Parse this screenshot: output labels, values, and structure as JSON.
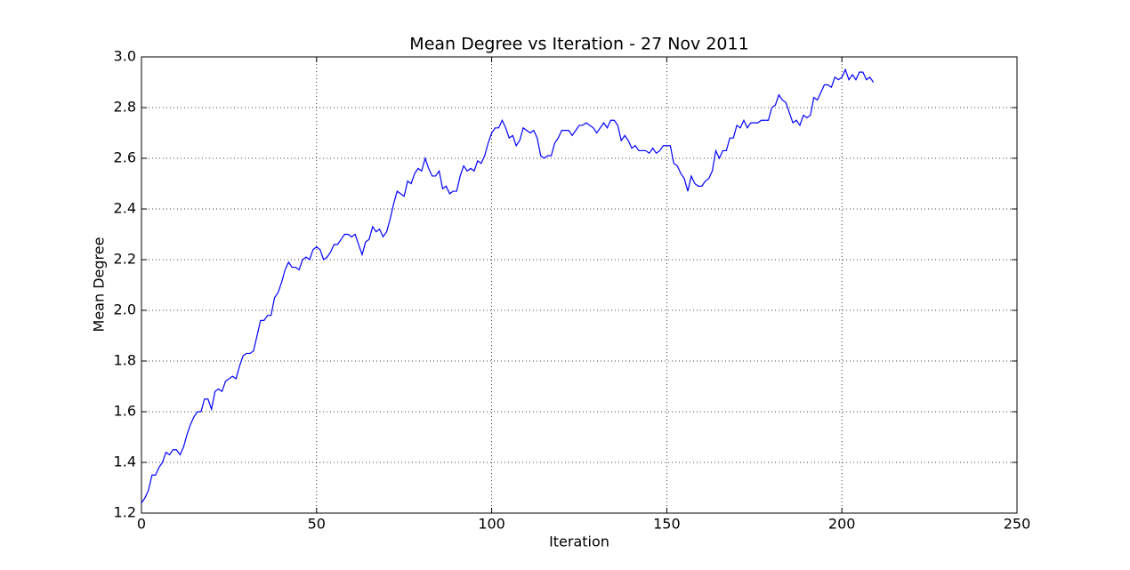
{
  "chart_data": {
    "type": "line",
    "title": "Mean Degree vs Iteration - 27 Nov 2011",
    "x_label": "Iteration",
    "y_label": "Mean Degree",
    "x": [
      0,
      1,
      2,
      3,
      4,
      5,
      6,
      7,
      8,
      9,
      10,
      11,
      12,
      13,
      14,
      15,
      16,
      17,
      18,
      19,
      20,
      21,
      22,
      23,
      24,
      25,
      26,
      27,
      28,
      29,
      30,
      31,
      32,
      33,
      34,
      35,
      36,
      37,
      38,
      39,
      40,
      41,
      42,
      43,
      44,
      45,
      46,
      47,
      48,
      49,
      50,
      51,
      52,
      53,
      54,
      55,
      56,
      57,
      58,
      59,
      60,
      61,
      62,
      63,
      64,
      65,
      66,
      67,
      68,
      69,
      70,
      71,
      72,
      73,
      74,
      75,
      76,
      77,
      78,
      79,
      80,
      81,
      82,
      83,
      84,
      85,
      86,
      87,
      88,
      89,
      90,
      91,
      92,
      93,
      94,
      95,
      96,
      97,
      98,
      99,
      100,
      101,
      102,
      103,
      104,
      105,
      106,
      107,
      108,
      109,
      110,
      111,
      112,
      113,
      114,
      115,
      116,
      117,
      118,
      119,
      120,
      121,
      122,
      123,
      124,
      125,
      126,
      127,
      128,
      129,
      130,
      131,
      132,
      133,
      134,
      135,
      136,
      137,
      138,
      139,
      140,
      141,
      142,
      143,
      144,
      145,
      146,
      147,
      148,
      149,
      150,
      151,
      152,
      153,
      154,
      155,
      156,
      157,
      158,
      159,
      160,
      161,
      162,
      163,
      164,
      165,
      166,
      167,
      168,
      169,
      170,
      171,
      172,
      173,
      174,
      175,
      176,
      177,
      178,
      179,
      180,
      181,
      182,
      183,
      184,
      185,
      186,
      187,
      188,
      189,
      190,
      191,
      192,
      193,
      194,
      195,
      196,
      197,
      198,
      199,
      200,
      201,
      202,
      203,
      204,
      205,
      206,
      207,
      208,
      209
    ],
    "series": [
      {
        "name": "Mean Degree",
        "color": "#0000ff",
        "values": [
          1.24,
          1.26,
          1.29,
          1.35,
          1.35,
          1.38,
          1.4,
          1.44,
          1.43,
          1.45,
          1.45,
          1.43,
          1.46,
          1.51,
          1.55,
          1.58,
          1.6,
          1.6,
          1.65,
          1.65,
          1.61,
          1.68,
          1.69,
          1.68,
          1.72,
          1.73,
          1.74,
          1.73,
          1.78,
          1.82,
          1.83,
          1.83,
          1.84,
          1.9,
          1.96,
          1.96,
          1.98,
          1.98,
          2.05,
          2.07,
          2.11,
          2.16,
          2.19,
          2.17,
          2.17,
          2.16,
          2.2,
          2.21,
          2.2,
          2.24,
          2.25,
          2.24,
          2.2,
          2.21,
          2.23,
          2.26,
          2.26,
          2.28,
          2.3,
          2.3,
          2.29,
          2.3,
          2.26,
          2.22,
          2.27,
          2.28,
          2.33,
          2.31,
          2.32,
          2.29,
          2.31,
          2.36,
          2.42,
          2.47,
          2.46,
          2.45,
          2.51,
          2.5,
          2.54,
          2.56,
          2.55,
          2.6,
          2.56,
          2.53,
          2.53,
          2.55,
          2.48,
          2.49,
          2.46,
          2.47,
          2.47,
          2.53,
          2.57,
          2.55,
          2.56,
          2.55,
          2.59,
          2.58,
          2.61,
          2.66,
          2.7,
          2.72,
          2.72,
          2.75,
          2.72,
          2.68,
          2.69,
          2.65,
          2.67,
          2.72,
          2.71,
          2.7,
          2.71,
          2.68,
          2.61,
          2.6,
          2.61,
          2.61,
          2.66,
          2.68,
          2.71,
          2.71,
          2.71,
          2.69,
          2.71,
          2.73,
          2.73,
          2.74,
          2.73,
          2.72,
          2.7,
          2.72,
          2.74,
          2.72,
          2.75,
          2.75,
          2.73,
          2.67,
          2.69,
          2.67,
          2.64,
          2.65,
          2.63,
          2.63,
          2.63,
          2.62,
          2.64,
          2.62,
          2.63,
          2.65,
          2.65,
          2.65,
          2.58,
          2.57,
          2.54,
          2.52,
          2.47,
          2.53,
          2.5,
          2.49,
          2.49,
          2.51,
          2.52,
          2.55,
          2.63,
          2.6,
          2.63,
          2.63,
          2.68,
          2.68,
          2.73,
          2.72,
          2.75,
          2.72,
          2.74,
          2.74,
          2.74,
          2.75,
          2.75,
          2.75,
          2.8,
          2.81,
          2.85,
          2.83,
          2.82,
          2.78,
          2.74,
          2.75,
          2.73,
          2.77,
          2.76,
          2.77,
          2.84,
          2.83,
          2.86,
          2.89,
          2.89,
          2.88,
          2.92,
          2.91,
          2.92,
          2.95,
          2.91,
          2.93,
          2.91,
          2.94,
          2.94,
          2.91,
          2.92,
          2.9
        ]
      }
    ],
    "xlim": [
      0,
      250
    ],
    "xticks": [
      0,
      50,
      100,
      150,
      200,
      250
    ],
    "ylim": [
      1.2,
      3.0
    ],
    "yticks": [
      1.2,
      1.4,
      1.6,
      1.8,
      {
        "value": 2,
        "label": "2.0"
      },
      2.2,
      2.4,
      2.6,
      2.8,
      {
        "value": 3,
        "label": "3.0"
      }
    ],
    "grid": true
  }
}
